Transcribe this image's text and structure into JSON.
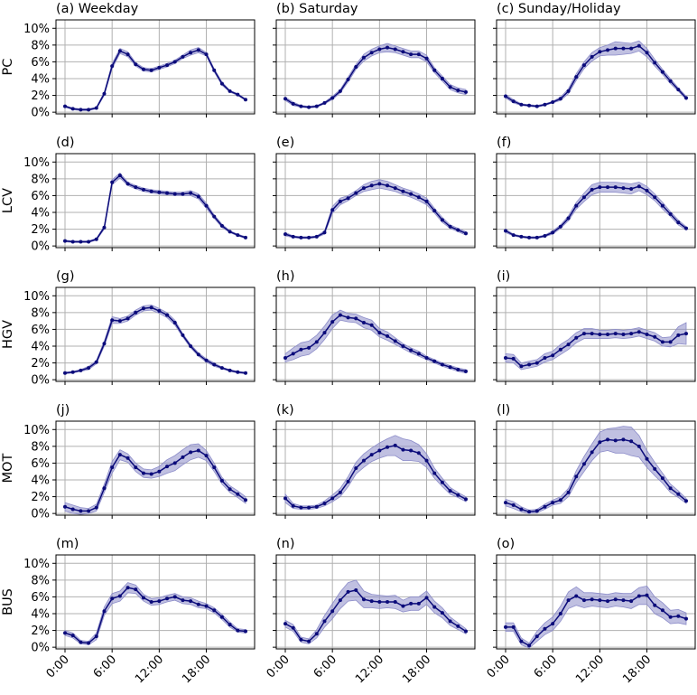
{
  "shared": {
    "x": [
      0,
      1,
      2,
      3,
      4,
      5,
      6,
      7,
      8,
      9,
      10,
      11,
      12,
      13,
      14,
      15,
      16,
      17,
      18,
      19,
      20,
      21,
      22,
      23
    ],
    "xlim": [
      -1.15,
      24.15
    ],
    "xticks": [
      {
        "value": 0,
        "label": "0:00"
      },
      {
        "value": 6,
        "label": "6:00"
      },
      {
        "value": 12,
        "label": "12:00"
      },
      {
        "value": 18,
        "label": "18:00"
      }
    ],
    "ylim": [
      -0.2,
      11.0
    ],
    "yticks": [
      {
        "value": 0,
        "label": "0%"
      },
      {
        "value": 2,
        "label": "2%"
      },
      {
        "value": 4,
        "label": "4%"
      },
      {
        "value": 6,
        "label": "6%"
      },
      {
        "value": 8,
        "label": "8%"
      },
      {
        "value": 10,
        "label": "10%"
      }
    ],
    "grid": true,
    "line_color": "#0b0b7a",
    "band_color": "#8c8cc9"
  },
  "chart_data": [
    {
      "type": "line",
      "title": "(a) Weekday",
      "ylabel": "PC",
      "values": [
        0.7,
        0.4,
        0.3,
        0.3,
        0.5,
        2.2,
        5.5,
        7.3,
        6.9,
        5.7,
        5.1,
        5.0,
        5.3,
        5.6,
        6.0,
        6.6,
        7.1,
        7.4,
        6.9,
        5.0,
        3.4,
        2.5,
        2.1,
        1.5
      ],
      "band": [
        0.1,
        0.1,
        0.1,
        0.1,
        0.1,
        0.2,
        0.3,
        0.3,
        0.3,
        0.2,
        0.2,
        0.2,
        0.2,
        0.2,
        0.2,
        0.2,
        0.3,
        0.3,
        0.2,
        0.2,
        0.2,
        0.1,
        0.1,
        0.1
      ]
    },
    {
      "type": "line",
      "title": "(b) Saturday",
      "values": [
        1.6,
        1.0,
        0.7,
        0.6,
        0.7,
        1.1,
        1.7,
        2.5,
        3.9,
        5.4,
        6.5,
        7.1,
        7.5,
        7.7,
        7.5,
        7.2,
        6.9,
        6.9,
        6.4,
        5.0,
        4.0,
        3.0,
        2.6,
        2.4
      ],
      "band": [
        0.2,
        0.2,
        0.1,
        0.1,
        0.1,
        0.1,
        0.2,
        0.2,
        0.3,
        0.3,
        0.4,
        0.4,
        0.4,
        0.5,
        0.4,
        0.4,
        0.4,
        0.4,
        0.4,
        0.3,
        0.3,
        0.3,
        0.3,
        0.3
      ]
    },
    {
      "type": "line",
      "title": "(c) Sunday/Holiday",
      "values": [
        1.9,
        1.3,
        0.9,
        0.8,
        0.7,
        0.9,
        1.2,
        1.6,
        2.5,
        4.2,
        5.6,
        6.6,
        7.2,
        7.4,
        7.6,
        7.6,
        7.6,
        7.9,
        7.1,
        5.9,
        4.8,
        3.7,
        2.7,
        1.7
      ],
      "band": [
        0.2,
        0.2,
        0.1,
        0.1,
        0.1,
        0.1,
        0.1,
        0.2,
        0.3,
        0.4,
        0.4,
        0.5,
        0.5,
        0.6,
        0.8,
        0.7,
        0.6,
        0.6,
        0.5,
        0.4,
        0.3,
        0.3,
        0.2,
        0.2
      ]
    },
    {
      "type": "line",
      "title": "(d)",
      "ylabel": "LCV",
      "values": [
        0.6,
        0.5,
        0.5,
        0.5,
        0.8,
        2.2,
        7.6,
        8.4,
        7.4,
        7.0,
        6.7,
        6.5,
        6.4,
        6.3,
        6.2,
        6.2,
        6.3,
        5.9,
        4.8,
        3.5,
        2.4,
        1.7,
        1.3,
        1.0
      ],
      "band": [
        0.1,
        0.1,
        0.1,
        0.1,
        0.1,
        0.2,
        0.3,
        0.3,
        0.2,
        0.2,
        0.2,
        0.2,
        0.2,
        0.2,
        0.2,
        0.2,
        0.3,
        0.3,
        0.3,
        0.2,
        0.2,
        0.1,
        0.1,
        0.1
      ]
    },
    {
      "type": "line",
      "title": "(e)",
      "values": [
        1.4,
        1.1,
        1.0,
        1.0,
        1.1,
        1.6,
        4.3,
        5.3,
        5.7,
        6.3,
        6.9,
        7.2,
        7.4,
        7.2,
        6.9,
        6.5,
        6.2,
        5.8,
        5.3,
        4.2,
        3.1,
        2.3,
        1.9,
        1.5
      ],
      "band": [
        0.2,
        0.1,
        0.1,
        0.1,
        0.1,
        0.2,
        0.4,
        0.4,
        0.3,
        0.3,
        0.4,
        0.5,
        0.5,
        0.5,
        0.4,
        0.4,
        0.4,
        0.4,
        0.4,
        0.3,
        0.3,
        0.2,
        0.2,
        0.2
      ]
    },
    {
      "type": "line",
      "title": "(f)",
      "values": [
        1.8,
        1.3,
        1.1,
        1.0,
        1.0,
        1.2,
        1.6,
        2.3,
        3.3,
        4.8,
        5.8,
        6.7,
        7.0,
        7.0,
        7.0,
        6.9,
        6.8,
        7.1,
        6.6,
        5.8,
        4.8,
        3.8,
        2.8,
        2.1
      ],
      "band": [
        0.2,
        0.1,
        0.1,
        0.1,
        0.1,
        0.1,
        0.2,
        0.2,
        0.3,
        0.4,
        0.5,
        0.6,
        0.6,
        0.6,
        0.6,
        0.6,
        0.6,
        0.5,
        0.5,
        0.4,
        0.4,
        0.3,
        0.3,
        0.2
      ]
    },
    {
      "type": "line",
      "title": "(g)",
      "ylabel": "HGV",
      "values": [
        0.8,
        0.9,
        1.1,
        1.4,
        2.1,
        4.3,
        7.1,
        7.0,
        7.3,
        8.0,
        8.5,
        8.6,
        8.2,
        7.7,
        6.8,
        5.3,
        4.0,
        3.0,
        2.3,
        1.8,
        1.4,
        1.1,
        0.9,
        0.8
      ],
      "band": [
        0.1,
        0.1,
        0.1,
        0.2,
        0.2,
        0.3,
        0.4,
        0.3,
        0.3,
        0.3,
        0.3,
        0.3,
        0.3,
        0.3,
        0.3,
        0.2,
        0.2,
        0.2,
        0.2,
        0.2,
        0.1,
        0.1,
        0.1,
        0.1
      ]
    },
    {
      "type": "line",
      "title": "(h)",
      "values": [
        2.6,
        3.1,
        3.6,
        3.8,
        4.5,
        5.6,
        6.9,
        7.7,
        7.4,
        7.3,
        6.8,
        6.5,
        5.6,
        5.2,
        4.6,
        4.0,
        3.5,
        3.1,
        2.6,
        2.2,
        1.8,
        1.5,
        1.2,
        1.0
      ],
      "band": [
        0.5,
        0.7,
        0.8,
        0.8,
        0.8,
        0.8,
        0.8,
        0.6,
        0.5,
        0.5,
        0.6,
        0.6,
        0.5,
        0.5,
        0.4,
        0.3,
        0.3,
        0.3,
        0.2,
        0.2,
        0.2,
        0.2,
        0.2,
        0.2
      ]
    },
    {
      "type": "line",
      "title": "(i)",
      "values": [
        2.6,
        2.5,
        1.6,
        1.8,
        2.0,
        2.6,
        2.9,
        3.6,
        4.2,
        5.0,
        5.5,
        5.5,
        5.4,
        5.4,
        5.5,
        5.4,
        5.5,
        5.7,
        5.4,
        5.1,
        4.5,
        4.5,
        5.3,
        5.5
      ],
      "band": [
        0.5,
        0.5,
        0.4,
        0.4,
        0.4,
        0.5,
        0.5,
        0.6,
        0.6,
        0.6,
        0.6,
        0.6,
        0.5,
        0.5,
        0.5,
        0.5,
        0.5,
        0.5,
        0.5,
        0.5,
        0.5,
        0.6,
        1.0,
        1.3
      ]
    },
    {
      "type": "line",
      "title": "(j)",
      "ylabel": "MOT",
      "values": [
        0.8,
        0.5,
        0.3,
        0.3,
        0.7,
        3.0,
        5.5,
        7.0,
        6.6,
        5.5,
        4.8,
        4.7,
        5.0,
        5.6,
        6.0,
        6.7,
        7.3,
        7.5,
        6.9,
        5.5,
        3.9,
        2.9,
        2.3,
        1.6
      ],
      "band": [
        0.5,
        0.5,
        0.4,
        0.3,
        0.4,
        0.5,
        0.7,
        0.6,
        0.5,
        0.5,
        0.5,
        0.5,
        0.6,
        0.8,
        0.9,
        0.9,
        0.9,
        0.8,
        0.6,
        0.5,
        0.4,
        0.4,
        0.4,
        0.4
      ]
    },
    {
      "type": "line",
      "title": "(k)",
      "values": [
        1.8,
        0.9,
        0.7,
        0.7,
        0.8,
        1.2,
        1.8,
        2.5,
        3.8,
        5.4,
        6.3,
        7.0,
        7.5,
        7.9,
        8.1,
        7.6,
        7.5,
        7.2,
        6.3,
        4.8,
        3.7,
        2.7,
        2.2,
        1.7
      ],
      "band": [
        0.5,
        0.3,
        0.2,
        0.2,
        0.2,
        0.3,
        0.4,
        0.5,
        0.6,
        0.7,
        0.8,
        0.8,
        0.9,
        1.0,
        1.2,
        1.3,
        1.2,
        1.0,
        0.8,
        0.6,
        0.5,
        0.4,
        0.3,
        0.3
      ]
    },
    {
      "type": "line",
      "title": "(l)",
      "values": [
        1.3,
        1.0,
        0.5,
        0.2,
        0.3,
        0.8,
        1.3,
        1.6,
        2.5,
        4.4,
        5.9,
        7.3,
        8.5,
        8.8,
        8.7,
        8.8,
        8.6,
        8.0,
        6.5,
        5.3,
        4.2,
        3.0,
        2.3,
        1.5
      ],
      "band": [
        0.4,
        0.4,
        0.3,
        0.2,
        0.2,
        0.3,
        0.3,
        0.4,
        0.5,
        0.7,
        0.9,
        1.0,
        1.2,
        1.3,
        1.5,
        1.6,
        1.7,
        1.3,
        1.0,
        0.8,
        0.6,
        0.5,
        0.4,
        0.3
      ]
    },
    {
      "type": "line",
      "title": "(m)",
      "ylabel": "BUS",
      "values": [
        1.7,
        1.4,
        0.6,
        0.5,
        1.3,
        4.3,
        5.8,
        6.1,
        7.1,
        6.9,
        5.9,
        5.4,
        5.5,
        5.8,
        6.0,
        5.6,
        5.5,
        5.1,
        4.9,
        4.4,
        3.6,
        2.7,
        2.0,
        1.9
      ],
      "band": [
        0.3,
        0.3,
        0.2,
        0.2,
        0.4,
        0.5,
        0.6,
        0.6,
        0.6,
        0.5,
        0.4,
        0.4,
        0.4,
        0.4,
        0.4,
        0.4,
        0.4,
        0.4,
        0.3,
        0.3,
        0.3,
        0.3,
        0.2,
        0.2
      ]
    },
    {
      "type": "line",
      "title": "(n)",
      "values": [
        2.8,
        2.3,
        0.9,
        0.7,
        1.6,
        3.1,
        4.3,
        5.6,
        6.6,
        6.8,
        5.7,
        5.5,
        5.4,
        5.4,
        5.4,
        4.9,
        5.2,
        5.2,
        5.9,
        4.8,
        4.1,
        3.1,
        2.5,
        1.9
      ],
      "band": [
        0.4,
        0.4,
        0.3,
        0.3,
        0.5,
        0.7,
        0.9,
        1.0,
        1.1,
        1.2,
        1.0,
        0.8,
        0.8,
        0.7,
        0.8,
        0.7,
        0.8,
        0.8,
        0.8,
        0.7,
        0.6,
        0.5,
        0.4,
        0.3
      ]
    },
    {
      "type": "line",
      "title": "(o)",
      "values": [
        2.4,
        2.4,
        0.7,
        0.2,
        1.3,
        2.2,
        2.8,
        4.0,
        5.6,
        6.1,
        5.6,
        5.7,
        5.6,
        5.5,
        5.7,
        5.6,
        5.5,
        6.1,
        6.2,
        5.0,
        4.4,
        3.6,
        3.7,
        3.4
      ],
      "band": [
        0.5,
        0.5,
        0.4,
        0.3,
        0.6,
        0.7,
        0.8,
        0.9,
        1.0,
        1.1,
        0.9,
        0.8,
        0.8,
        0.8,
        0.8,
        0.8,
        0.9,
        1.0,
        1.1,
        1.0,
        0.9,
        0.8,
        0.8,
        0.7
      ]
    }
  ]
}
